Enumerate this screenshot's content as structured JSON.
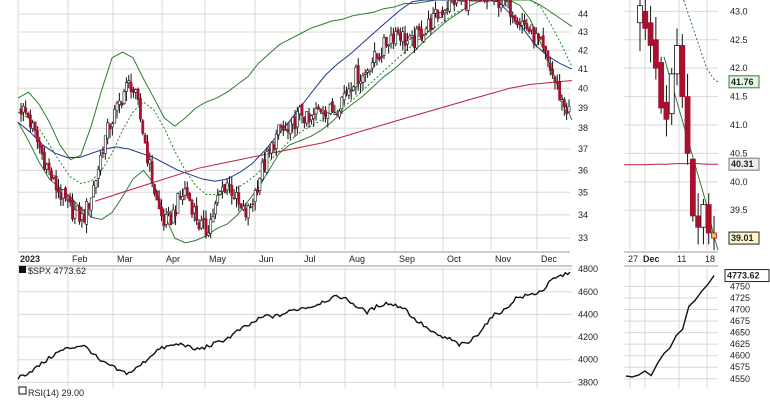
{
  "colors": {
    "up": "#ffffff",
    "down": "#a8102e",
    "candle_outline": "#111111",
    "bollinger": "#2e7d32",
    "sma20": "#1e8a1e",
    "sma50": "#1f3a8f",
    "sma200": "#c0203a",
    "spx_line": "#111111",
    "grid": "#d8d8d8",
    "axis_text": "#222222",
    "daily_tag_fill": "#fff6c8",
    "zoom_high_tag_fill": "#e6f5e6",
    "zoom_sma200_tag_fill": "#eeeeee",
    "zoom_last_tag_fill": "#fff6c8"
  },
  "legend": {
    "spx_label": "$SPX 4773.62",
    "rsi_label": "RSI(14) 29.00"
  },
  "price_tags": {
    "zoom_bollinger_upper": "41.76",
    "zoom_sma200": "40.31",
    "zoom_last": "39.01",
    "spx_last": "4773.62"
  },
  "chart_data": [
    {
      "type": "candlestick",
      "panel": "main-daily",
      "x_labels": [
        "2023",
        "Feb",
        "Mar",
        "Apr",
        "May",
        "Jun",
        "Jul",
        "Aug",
        "Sep",
        "Oct",
        "Nov",
        "Dec"
      ],
      "y_ticks": [
        "33",
        "34",
        "35",
        "36",
        "37",
        "38",
        "39",
        "40",
        "41",
        "42",
        "43",
        "44"
      ],
      "ylim": [
        32.5,
        44.8
      ],
      "y_scale": "log",
      "grid": true,
      "overlays": [
        "bollinger_bands_20_2",
        "sma_20",
        "sma_50",
        "sma_200"
      ],
      "close_series": [
        39.0,
        38.6,
        37.7,
        36.8,
        36.0,
        35.3,
        34.8,
        34.3,
        34.1,
        33.8,
        34.6,
        35.7,
        37.2,
        38.2,
        38.9,
        39.8,
        40.3,
        39.2,
        37.5,
        35.8,
        34.3,
        33.6,
        33.9,
        34.6,
        35.1,
        34.4,
        33.6,
        33.3,
        34.0,
        34.9,
        35.5,
        35.0,
        34.2,
        34.0,
        34.8,
        35.9,
        36.6,
        37.4,
        38.0,
        37.7,
        38.4,
        38.8,
        38.2,
        38.7,
        39.1,
        38.8,
        39.0,
        39.6,
        40.2,
        40.7,
        40.6,
        41.4,
        41.6,
        42.2,
        42.8,
        43.1,
        42.6,
        42.3,
        42.8,
        43.2,
        43.6,
        44.0,
        44.5,
        44.8,
        44.8,
        44.8,
        44.8,
        44.8,
        44.8,
        44.8,
        44.8,
        44.5,
        44.1,
        43.6,
        43.2,
        42.7,
        42.1,
        41.3,
        40.3,
        39.3,
        38.8
      ],
      "bollinger_upper": [
        39.5,
        39.8,
        39.2,
        38.3,
        37.2,
        36.5,
        36.7,
        38.1,
        39.9,
        41.6,
        41.9,
        41.6,
        40.5,
        39.5,
        38.5,
        38.1,
        38.5,
        39.0,
        39.3,
        39.5,
        39.8,
        40.2,
        40.6,
        41.3,
        41.8,
        42.3,
        42.6,
        42.9,
        43.2,
        43.4,
        43.6,
        43.7,
        43.9,
        44.0,
        44.1,
        44.3,
        44.4,
        44.6,
        44.6,
        44.7,
        44.8,
        44.8,
        44.8,
        44.8,
        44.8,
        44.8,
        44.8,
        44.8,
        44.8,
        44.8,
        44.5,
        44.1,
        43.7,
        43.3
      ],
      "sma_20": [
        38.8,
        38.5,
        38.0,
        37.2,
        36.4,
        35.7,
        35.4,
        35.5,
        36.0,
        36.8,
        37.9,
        38.8,
        39.3,
        38.9,
        38.0,
        36.9,
        36.0,
        35.3,
        34.9,
        34.9,
        35.0,
        35.2,
        35.5,
        35.9,
        36.4,
        36.9,
        37.4,
        37.8,
        38.1,
        38.4,
        38.7,
        39.0,
        39.4,
        39.9,
        40.4,
        40.9,
        41.4,
        41.9,
        42.4,
        42.9,
        43.3,
        43.7,
        44.1,
        44.4,
        44.7,
        44.8,
        44.8,
        44.8,
        44.8,
        44.8,
        44.4,
        43.4,
        42.3,
        41.1
      ],
      "bollinger_lower": [
        38.3,
        37.4,
        36.4,
        35.6,
        35.2,
        34.8,
        34.3,
        33.9,
        33.8,
        34.1,
        34.8,
        35.6,
        36.0,
        35.4,
        34.0,
        33.0,
        32.8,
        32.9,
        33.1,
        33.4,
        33.6,
        34.0,
        34.6,
        35.2,
        36.0,
        36.8,
        37.2,
        37.4,
        37.6,
        37.9,
        38.3,
        38.8,
        39.2,
        39.6,
        40.1,
        40.6,
        41.0,
        41.5,
        42.0,
        42.6,
        43.1,
        43.6,
        44.0,
        44.4,
        44.7,
        44.8,
        44.8,
        44.8,
        44.5,
        43.7,
        42.4,
        41.1,
        39.6,
        38.4
      ],
      "sma_50": [
        38.3,
        37.8,
        37.2,
        36.8,
        36.6,
        36.6,
        36.8,
        37.0,
        37.1,
        37.0,
        36.8,
        36.6,
        36.3,
        36.0,
        35.8,
        35.6,
        35.5,
        35.6,
        35.9,
        36.3,
        36.9,
        37.6,
        38.3,
        39.1,
        39.9,
        40.7,
        41.3,
        41.8,
        42.4,
        43.0,
        43.6,
        44.2,
        44.7,
        44.8,
        44.8,
        44.8,
        44.8,
        44.8,
        44.8,
        44.7,
        44.0,
        43.2,
        42.3,
        41.7,
        41.3,
        41.0
      ],
      "sma_200": [
        34.6,
        34.9,
        35.2,
        35.5,
        35.8,
        36.1,
        36.3,
        36.5,
        36.7,
        36.9,
        37.1,
        37.3,
        37.6,
        37.9,
        38.2,
        38.5,
        38.8,
        39.1,
        39.4,
        39.7,
        40.0,
        40.2,
        40.3,
        40.4
      ]
    },
    {
      "type": "candlestick",
      "panel": "zoom-recent",
      "x_labels": [
        "27",
        "Dec",
        "11",
        "18"
      ],
      "y_ticks": [
        "39.5",
        "40.0",
        "40.5",
        "41.0",
        "41.5",
        "42.0",
        "42.5",
        "43.0"
      ],
      "ylim": [
        38.8,
        43.2
      ],
      "grid": true,
      "candles": [
        {
          "o": 42.8,
          "h": 43.2,
          "l": 42.3,
          "c": 43.1
        },
        {
          "o": 43.0,
          "h": 43.2,
          "l": 42.5,
          "c": 42.7
        },
        {
          "o": 42.8,
          "h": 43.1,
          "l": 42.1,
          "c": 42.4
        },
        {
          "o": 42.5,
          "h": 42.9,
          "l": 41.8,
          "c": 42.0
        },
        {
          "o": 42.1,
          "h": 42.2,
          "l": 41.2,
          "c": 41.3
        },
        {
          "o": 41.4,
          "h": 41.7,
          "l": 40.8,
          "c": 41.1
        },
        {
          "o": 41.2,
          "h": 42.0,
          "l": 41.0,
          "c": 41.9
        },
        {
          "o": 41.9,
          "h": 42.7,
          "l": 41.7,
          "c": 42.4
        },
        {
          "o": 42.4,
          "h": 42.6,
          "l": 41.3,
          "c": 41.5
        },
        {
          "o": 41.5,
          "h": 41.9,
          "l": 40.3,
          "c": 40.5
        },
        {
          "o": 40.4,
          "h": 40.4,
          "l": 39.3,
          "c": 39.4
        },
        {
          "o": 39.4,
          "h": 39.8,
          "l": 38.9,
          "c": 39.2
        },
        {
          "o": 39.2,
          "h": 39.7,
          "l": 38.9,
          "c": 39.6
        },
        {
          "o": 39.6,
          "h": 39.8,
          "l": 38.9,
          "c": 39.1
        },
        {
          "o": 39.1,
          "h": 39.4,
          "l": 38.8,
          "c": 39.01
        }
      ],
      "bollinger_upper": [
        43.6,
        43.4,
        43.2,
        43.0,
        42.8,
        42.6,
        42.4,
        42.2,
        42.0,
        41.9,
        41.8,
        41.76
      ],
      "bollinger_lower": [
        42.2,
        41.9,
        41.6,
        41.3,
        41.0,
        40.7,
        40.4,
        40.1,
        39.8,
        39.5,
        39.1,
        38.8
      ],
      "sma_200": [
        40.3,
        40.3,
        40.3,
        40.31,
        40.31,
        40.32,
        40.32,
        40.32,
        40.31,
        40.31
      ]
    },
    {
      "type": "line",
      "panel": "spx-main",
      "name": "$SPX",
      "y_ticks": [
        "3800",
        "4000",
        "4200",
        "4400",
        "4600",
        "4800"
      ],
      "ylim": [
        3750,
        4810
      ],
      "grid": true,
      "values": [
        3840,
        3880,
        3930,
        3990,
        4050,
        4090,
        4110,
        4130,
        4070,
        3980,
        3950,
        3900,
        3880,
        3930,
        4000,
        4080,
        4110,
        4130,
        4140,
        4090,
        4100,
        4130,
        4160,
        4200,
        4260,
        4300,
        4350,
        4390,
        4380,
        4410,
        4440,
        4460,
        4470,
        4510,
        4540,
        4560,
        4520,
        4460,
        4420,
        4470,
        4500,
        4480,
        4460,
        4360,
        4310,
        4240,
        4200,
        4180,
        4130,
        4150,
        4230,
        4330,
        4410,
        4440,
        4540,
        4560,
        4580,
        4610,
        4700,
        4740,
        4773.62
      ]
    },
    {
      "type": "line",
      "panel": "spx-zoom",
      "name": "$SPX",
      "y_ticks": [
        "4550",
        "4575",
        "4600",
        "4625",
        "4650",
        "4675",
        "4700",
        "4725",
        "4750",
        "4773.62"
      ],
      "ylim": [
        4530,
        4790
      ],
      "grid": true,
      "values": [
        4556,
        4554,
        4558,
        4567,
        4557,
        4583,
        4604,
        4617,
        4644,
        4657,
        4707,
        4720,
        4739,
        4754,
        4773.62
      ]
    }
  ]
}
